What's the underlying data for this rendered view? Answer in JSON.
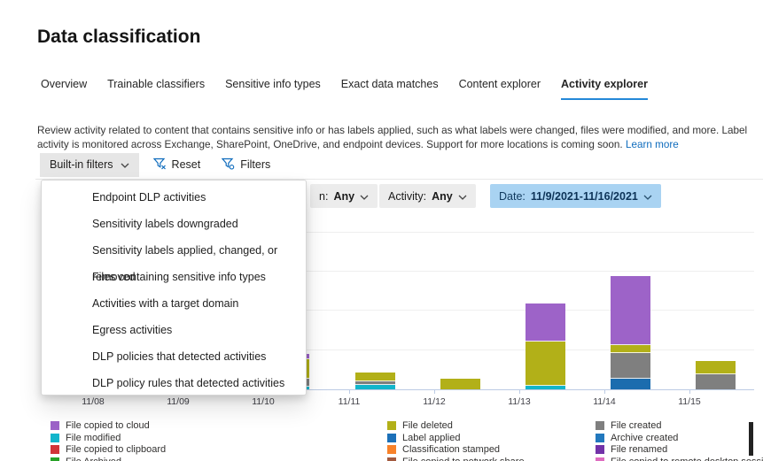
{
  "page": {
    "title": "Data classification"
  },
  "tabs": [
    {
      "label": "Overview",
      "active": false
    },
    {
      "label": "Trainable classifiers",
      "active": false
    },
    {
      "label": "Sensitive info types",
      "active": false
    },
    {
      "label": "Exact data matches",
      "active": false
    },
    {
      "label": "Content explorer",
      "active": false
    },
    {
      "label": "Activity explorer",
      "active": true
    }
  ],
  "description": {
    "text": "Review activity related to content that contains sensitive info or has labels applied, such as what labels were changed, files were modified, and more. Label activity is monitored across Exchange, SharePoint, OneDrive, and endpoint devices. Support for more locations is coming soon.",
    "link": "Learn more"
  },
  "toolbar": {
    "builtin_filters": "Built-in filters",
    "reset": "Reset",
    "filters": "Filters"
  },
  "dropdown": {
    "items": [
      "Endpoint DLP activities",
      "Sensitivity labels downgraded",
      "Sensitivity labels applied, changed, or removed",
      "Files containing sensitive info types",
      "Activities with a target domain",
      "Egress activities",
      "DLP policies that detected activities",
      "DLP policy rules that detected activities"
    ]
  },
  "chips": [
    {
      "label": "n:",
      "value": "Any",
      "variant": "gray"
    },
    {
      "label": "Activity:",
      "value": "Any",
      "variant": "gray"
    },
    {
      "label": "Date:",
      "value": "11/9/2021-11/16/2021",
      "variant": "blue"
    }
  ],
  "chart_data": {
    "type": "bar",
    "stacked": true,
    "title": "",
    "xlabel": "",
    "ylabel": "",
    "grid": true,
    "legend_position": "bottom",
    "units_note": "Y-axis labels hidden behind the open filter menu; values are approximate relative heights (px). Bars for 11/08 and 11/09 are covered by the open menu.",
    "categories": [
      "11/08",
      "11/09",
      "11/10",
      "11/11",
      "11/12",
      "11/13",
      "11/14",
      "11/15"
    ],
    "series": [
      {
        "name": "File modified",
        "color": "#12b5cb",
        "values": [
          0,
          0,
          3,
          5,
          0,
          4,
          0,
          0
        ]
      },
      {
        "name": "Archive created",
        "color": "#1b6cae",
        "values": [
          0,
          0,
          0,
          0,
          0,
          0,
          12,
          0
        ]
      },
      {
        "name": "File created",
        "color": "#7f7f7f",
        "values": [
          0,
          0,
          9,
          4,
          0,
          0,
          29,
          17
        ]
      },
      {
        "name": "File deleted",
        "color": "#b2b018",
        "values": [
          0,
          0,
          22,
          10,
          12,
          50,
          9,
          15
        ]
      },
      {
        "name": "File copied to cloud",
        "color": "#9d63c8",
        "values": [
          0,
          0,
          6,
          0,
          0,
          43,
          78,
          0
        ]
      }
    ]
  },
  "legend": {
    "columns": [
      [
        {
          "label": "File copied to cloud",
          "color": "#9d63c8"
        },
        {
          "label": "File modified",
          "color": "#12b5cb"
        },
        {
          "label": "File copied to clipboard",
          "color": "#d13438"
        },
        {
          "label": "File Archived",
          "color": "#28a228"
        }
      ],
      [
        {
          "label": "File deleted",
          "color": "#b2b018"
        },
        {
          "label": "Label applied",
          "color": "#1c70b8"
        },
        {
          "label": "Classification stamped",
          "color": "#f8822a"
        },
        {
          "label": "File copied to network share",
          "color": "#a35a3f"
        }
      ],
      [
        {
          "label": "File created",
          "color": "#7f7f7f"
        },
        {
          "label": "Archive created",
          "color": "#2278bd"
        },
        {
          "label": "File renamed",
          "color": "#7232a8"
        },
        {
          "label": "File copied to remote desktop session",
          "color": "#de6cc0"
        }
      ]
    ]
  },
  "colors": {
    "accent_blue": "#0f6cbd",
    "tab_underline": "#2488d8",
    "chip_gray_bg": "#ececec",
    "chip_blue_bg": "#a9d3f2",
    "chip_blue_text": "#10395e",
    "axis_line": "#bccbe4"
  }
}
